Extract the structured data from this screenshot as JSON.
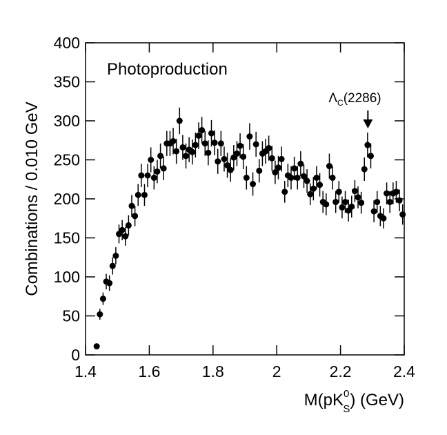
{
  "chart_data": {
    "type": "scatter",
    "y_label": "Combinations / 0.010 GeV",
    "x_label": {
      "main": "M(pK",
      "sup": "0",
      "sub": "S",
      "rest": ") (GeV)"
    },
    "legend_text": "Photoproduction",
    "annotation": {
      "main": "Λ",
      "sub": "C",
      "rest": "(2286)",
      "x": 2.286
    },
    "xlim": [
      1.4,
      2.4
    ],
    "xticks": [
      1.4,
      1.6,
      1.8,
      2,
      2.2,
      2.4
    ],
    "ylim": [
      0,
      400
    ],
    "yticks": [
      0,
      50,
      100,
      150,
      200,
      250,
      300,
      350,
      400
    ],
    "color": "#000000",
    "x": [
      1.435,
      1.445,
      1.455,
      1.465,
      1.475,
      1.485,
      1.495,
      1.505,
      1.515,
      1.525,
      1.535,
      1.545,
      1.555,
      1.565,
      1.575,
      1.585,
      1.595,
      1.605,
      1.615,
      1.625,
      1.635,
      1.645,
      1.655,
      1.665,
      1.675,
      1.685,
      1.695,
      1.705,
      1.715,
      1.725,
      1.735,
      1.745,
      1.755,
      1.765,
      1.775,
      1.785,
      1.795,
      1.805,
      1.815,
      1.825,
      1.835,
      1.845,
      1.855,
      1.865,
      1.875,
      1.885,
      1.895,
      1.905,
      1.915,
      1.925,
      1.935,
      1.945,
      1.955,
      1.965,
      1.975,
      1.985,
      1.995,
      2.005,
      2.015,
      2.025,
      2.035,
      2.045,
      2.055,
      2.065,
      2.075,
      2.085,
      2.095,
      2.105,
      2.115,
      2.125,
      2.135,
      2.145,
      2.155,
      2.165,
      2.175,
      2.185,
      2.195,
      2.205,
      2.215,
      2.225,
      2.235,
      2.245,
      2.255,
      2.265,
      2.275,
      2.285,
      2.295,
      2.305,
      2.315,
      2.325,
      2.335,
      2.345,
      2.355,
      2.365,
      2.375,
      2.385,
      2.395
    ],
    "values": [
      11,
      52,
      72,
      94,
      92,
      114,
      127,
      155,
      160,
      152,
      166,
      191,
      178,
      205,
      230,
      205,
      230,
      250,
      227,
      235,
      255,
      239,
      271,
      271,
      274,
      261,
      300,
      266,
      255,
      263,
      260,
      269,
      281,
      288,
      271,
      259,
      284,
      272,
      248,
      271,
      251,
      243,
      237,
      253,
      258,
      268,
      254,
      227,
      280,
      219,
      270,
      236,
      258,
      261,
      265,
      252,
      234,
      240,
      251,
      209,
      230,
      227,
      239,
      227,
      245,
      229,
      223,
      206,
      213,
      227,
      218,
      196,
      193,
      242,
      227,
      196,
      209,
      189,
      196,
      185,
      190,
      210,
      202,
      195,
      238,
      269,
      255,
      184,
      196,
      178,
      175,
      207,
      196,
      207,
      209,
      198,
      180
    ],
    "errors": [
      3,
      7,
      8,
      10,
      10,
      11,
      11,
      12,
      13,
      12,
      13,
      14,
      13,
      14,
      15,
      14,
      15,
      16,
      15,
      15,
      16,
      15,
      16,
      16,
      17,
      16,
      17,
      16,
      16,
      16,
      16,
      16,
      17,
      17,
      16,
      16,
      17,
      16,
      16,
      16,
      16,
      16,
      15,
      16,
      16,
      16,
      16,
      15,
      17,
      15,
      16,
      15,
      16,
      16,
      16,
      16,
      15,
      15,
      16,
      14,
      15,
      15,
      15,
      15,
      16,
      15,
      15,
      14,
      15,
      15,
      15,
      14,
      14,
      16,
      15,
      14,
      14,
      14,
      14,
      14,
      14,
      14,
      14,
      14,
      15,
      16,
      16,
      14,
      14,
      13,
      13,
      14,
      14,
      14,
      14,
      14,
      13
    ]
  }
}
